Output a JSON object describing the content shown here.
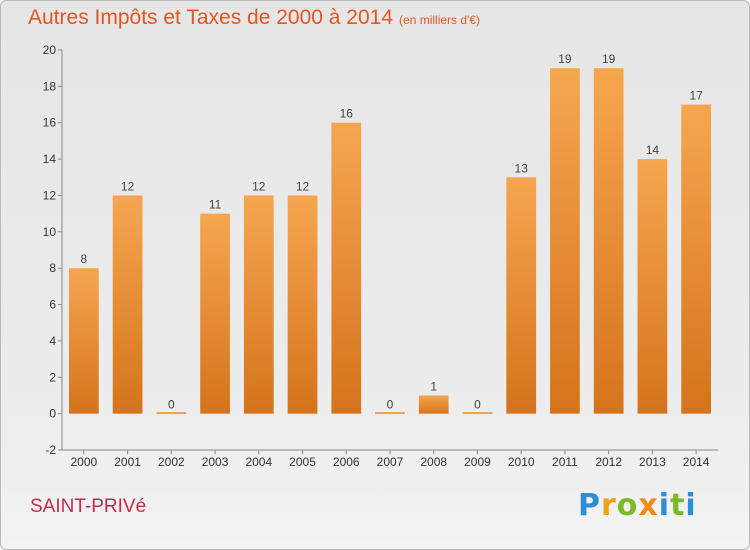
{
  "header": {
    "title": "Autres Impôts et Taxes de 2000 à 2014",
    "unit": "(en milliers d'€)"
  },
  "footer": {
    "commune": "SAINT-PRIVé",
    "logo_letters": [
      "P",
      "r",
      "o",
      "x",
      "i",
      "t",
      "i"
    ]
  },
  "colors": {
    "title": "#e2571f",
    "commune": "#c8284d",
    "bar_light": "#f6a650",
    "bar_dark": "#d4741c"
  },
  "chart_data": {
    "type": "bar",
    "title": "Autres Impôts et Taxes de 2000 à 2014",
    "subtitle": "(en milliers d'€)",
    "xlabel": "",
    "ylabel": "",
    "categories": [
      "2000",
      "2001",
      "2002",
      "2003",
      "2004",
      "2005",
      "2006",
      "2007",
      "2008",
      "2009",
      "2010",
      "2011",
      "2012",
      "2013",
      "2014"
    ],
    "values": [
      8,
      12,
      0,
      11,
      12,
      12,
      16,
      0,
      1,
      0,
      13,
      19,
      19,
      14,
      17
    ],
    "ylim": [
      -2,
      20
    ],
    "yticks": [
      -2,
      0,
      2,
      4,
      6,
      8,
      10,
      12,
      14,
      16,
      18,
      20
    ],
    "grid": false,
    "legend": "none"
  }
}
